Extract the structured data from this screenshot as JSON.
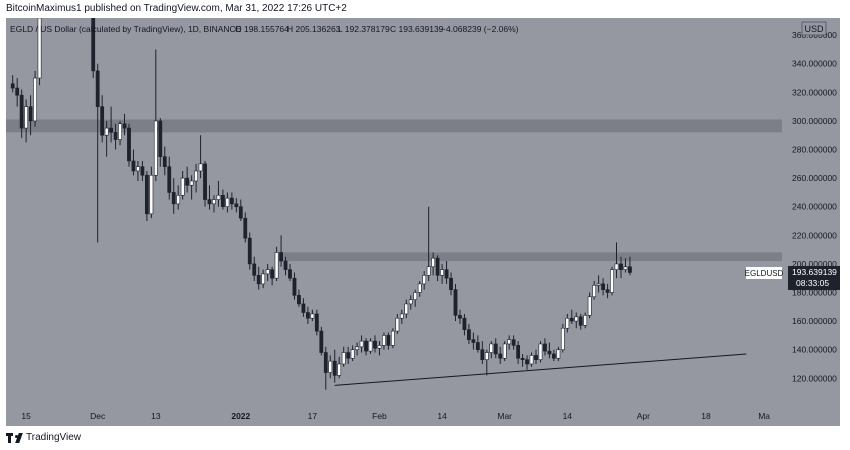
{
  "header": {
    "text": "BitcoinMaximus1 published on TradingView.com, Mar 31, 2022 17:26 UTC+2"
  },
  "footer": {
    "logo_text": "TradingView"
  },
  "colors": {
    "background": "#9598a1",
    "zone": "#7c7f87",
    "up": "#ffffff",
    "down": "#1e222d",
    "text": "#131722"
  },
  "chart_data": {
    "type": "candlestick",
    "symbol_line": {
      "title": "EGLD / US Dollar (calculated by TradingView), 1D, BINANCE",
      "open": "O 198.155764",
      "high": "H 205.136263",
      "low": "L 192.378179",
      "close": "C 193.639139",
      "change": "−4.068239 (−2.06%)"
    },
    "currency": "USD",
    "ylim": [
      102,
      372
    ],
    "y_ticks": [
      "360.000000",
      "340.000000",
      "320.000000",
      "300.000000",
      "280.000000",
      "260.000000",
      "240.000000",
      "220.000000",
      "200.000000",
      "180.000000",
      "160.000000",
      "140.000000",
      "120.000000"
    ],
    "x_ticks": [
      "15",
      "Dec",
      "13",
      "2022",
      "17",
      "Feb",
      "14",
      "Mar",
      "14",
      "Apr",
      "18",
      "Ma"
    ],
    "x_tick_days": [
      -1,
      15,
      28,
      47,
      63,
      78,
      92,
      106,
      120,
      137,
      151,
      164
    ],
    "last_price": {
      "label": "EGLDUSD",
      "price": "193.639139",
      "countdown": "08:33:05",
      "value": 193.64
    },
    "resistance_zones": [
      {
        "low": 292,
        "high": 301
      },
      {
        "low": 202,
        "high": 208
      }
    ],
    "support_line": {
      "from_day": 68,
      "from_value": 115,
      "to_day": 160,
      "to_value": 137
    },
    "candles": [
      {
        "day": -4,
        "o": 326,
        "h": 332,
        "l": 320,
        "c": 323
      },
      {
        "day": -3,
        "o": 323,
        "h": 330,
        "l": 310,
        "c": 318
      },
      {
        "day": -2,
        "o": 318,
        "h": 322,
        "l": 288,
        "c": 295
      },
      {
        "day": -1,
        "o": 295,
        "h": 315,
        "l": 285,
        "c": 310
      },
      {
        "day": 0,
        "o": 310,
        "h": 318,
        "l": 290,
        "c": 300
      },
      {
        "day": 1,
        "o": 300,
        "h": 335,
        "l": 296,
        "c": 330
      },
      {
        "day": 2,
        "o": 330,
        "h": 385,
        "l": 325,
        "c": 380
      },
      {
        "day": 14,
        "o": 385,
        "h": 390,
        "l": 330,
        "c": 335
      },
      {
        "day": 15,
        "o": 335,
        "h": 340,
        "l": 215,
        "c": 310
      },
      {
        "day": 16,
        "o": 310,
        "h": 318,
        "l": 285,
        "c": 290
      },
      {
        "day": 17,
        "o": 290,
        "h": 300,
        "l": 275,
        "c": 295
      },
      {
        "day": 18,
        "o": 295,
        "h": 310,
        "l": 285,
        "c": 292
      },
      {
        "day": 19,
        "o": 292,
        "h": 298,
        "l": 280,
        "c": 287
      },
      {
        "day": 20,
        "o": 287,
        "h": 300,
        "l": 283,
        "c": 298
      },
      {
        "day": 21,
        "o": 298,
        "h": 305,
        "l": 290,
        "c": 295
      },
      {
        "day": 22,
        "o": 295,
        "h": 298,
        "l": 268,
        "c": 272
      },
      {
        "day": 23,
        "o": 272,
        "h": 280,
        "l": 262,
        "c": 265
      },
      {
        "day": 24,
        "o": 265,
        "h": 272,
        "l": 258,
        "c": 268
      },
      {
        "day": 25,
        "o": 268,
        "h": 272,
        "l": 258,
        "c": 262
      },
      {
        "day": 26,
        "o": 262,
        "h": 265,
        "l": 230,
        "c": 235
      },
      {
        "day": 27,
        "o": 235,
        "h": 268,
        "l": 232,
        "c": 262
      },
      {
        "day": 28,
        "o": 262,
        "h": 350,
        "l": 258,
        "c": 300
      },
      {
        "day": 29,
        "o": 300,
        "h": 302,
        "l": 268,
        "c": 275
      },
      {
        "day": 30,
        "o": 275,
        "h": 282,
        "l": 262,
        "c": 268
      },
      {
        "day": 31,
        "o": 268,
        "h": 275,
        "l": 245,
        "c": 250
      },
      {
        "day": 32,
        "o": 250,
        "h": 260,
        "l": 235,
        "c": 242
      },
      {
        "day": 33,
        "o": 242,
        "h": 255,
        "l": 238,
        "c": 248
      },
      {
        "day": 34,
        "o": 248,
        "h": 265,
        "l": 245,
        "c": 260
      },
      {
        "day": 35,
        "o": 260,
        "h": 268,
        "l": 250,
        "c": 255
      },
      {
        "day": 36,
        "o": 255,
        "h": 262,
        "l": 245,
        "c": 258
      },
      {
        "day": 37,
        "o": 258,
        "h": 270,
        "l": 250,
        "c": 265
      },
      {
        "day": 38,
        "o": 265,
        "h": 290,
        "l": 260,
        "c": 270
      },
      {
        "day": 39,
        "o": 270,
        "h": 272,
        "l": 240,
        "c": 245
      },
      {
        "day": 40,
        "o": 245,
        "h": 255,
        "l": 238,
        "c": 242
      },
      {
        "day": 41,
        "o": 242,
        "h": 248,
        "l": 236,
        "c": 245
      },
      {
        "day": 42,
        "o": 245,
        "h": 258,
        "l": 240,
        "c": 248
      },
      {
        "day": 43,
        "o": 248,
        "h": 252,
        "l": 238,
        "c": 240
      },
      {
        "day": 44,
        "o": 240,
        "h": 250,
        "l": 236,
        "c": 246
      },
      {
        "day": 45,
        "o": 246,
        "h": 250,
        "l": 238,
        "c": 242
      },
      {
        "day": 46,
        "o": 242,
        "h": 246,
        "l": 236,
        "c": 240
      },
      {
        "day": 47,
        "o": 240,
        "h": 245,
        "l": 230,
        "c": 232
      },
      {
        "day": 48,
        "o": 232,
        "h": 236,
        "l": 215,
        "c": 218
      },
      {
        "day": 49,
        "o": 218,
        "h": 222,
        "l": 196,
        "c": 200
      },
      {
        "day": 50,
        "o": 200,
        "h": 205,
        "l": 188,
        "c": 192
      },
      {
        "day": 51,
        "o": 192,
        "h": 198,
        "l": 182,
        "c": 186
      },
      {
        "day": 52,
        "o": 186,
        "h": 196,
        "l": 183,
        "c": 193
      },
      {
        "day": 53,
        "o": 193,
        "h": 200,
        "l": 188,
        "c": 196
      },
      {
        "day": 54,
        "o": 196,
        "h": 198,
        "l": 185,
        "c": 190
      },
      {
        "day": 55,
        "o": 190,
        "h": 212,
        "l": 188,
        "c": 208
      },
      {
        "day": 56,
        "o": 208,
        "h": 220,
        "l": 198,
        "c": 202
      },
      {
        "day": 57,
        "o": 202,
        "h": 205,
        "l": 192,
        "c": 196
      },
      {
        "day": 58,
        "o": 196,
        "h": 200,
        "l": 188,
        "c": 190
      },
      {
        "day": 59,
        "o": 190,
        "h": 194,
        "l": 175,
        "c": 178
      },
      {
        "day": 60,
        "o": 178,
        "h": 182,
        "l": 170,
        "c": 172
      },
      {
        "day": 61,
        "o": 172,
        "h": 176,
        "l": 163,
        "c": 166
      },
      {
        "day": 62,
        "o": 166,
        "h": 170,
        "l": 158,
        "c": 162
      },
      {
        "day": 63,
        "o": 162,
        "h": 168,
        "l": 160,
        "c": 165
      },
      {
        "day": 64,
        "o": 165,
        "h": 168,
        "l": 150,
        "c": 153
      },
      {
        "day": 65,
        "o": 153,
        "h": 156,
        "l": 136,
        "c": 138
      },
      {
        "day": 66,
        "o": 138,
        "h": 142,
        "l": 112,
        "c": 124
      },
      {
        "day": 67,
        "o": 124,
        "h": 136,
        "l": 120,
        "c": 132
      },
      {
        "day": 68,
        "o": 132,
        "h": 140,
        "l": 117,
        "c": 122
      },
      {
        "day": 69,
        "o": 122,
        "h": 135,
        "l": 120,
        "c": 130
      },
      {
        "day": 70,
        "o": 130,
        "h": 142,
        "l": 128,
        "c": 138
      },
      {
        "day": 71,
        "o": 138,
        "h": 142,
        "l": 130,
        "c": 134
      },
      {
        "day": 72,
        "o": 134,
        "h": 143,
        "l": 132,
        "c": 140
      },
      {
        "day": 73,
        "o": 140,
        "h": 145,
        "l": 136,
        "c": 142
      },
      {
        "day": 74,
        "o": 142,
        "h": 150,
        "l": 138,
        "c": 146
      },
      {
        "day": 75,
        "o": 146,
        "h": 148,
        "l": 136,
        "c": 139
      },
      {
        "day": 76,
        "o": 139,
        "h": 148,
        "l": 137,
        "c": 146
      },
      {
        "day": 77,
        "o": 146,
        "h": 150,
        "l": 138,
        "c": 141
      },
      {
        "day": 78,
        "o": 141,
        "h": 146,
        "l": 136,
        "c": 143
      },
      {
        "day": 79,
        "o": 143,
        "h": 152,
        "l": 140,
        "c": 150
      },
      {
        "day": 80,
        "o": 150,
        "h": 152,
        "l": 140,
        "c": 143
      },
      {
        "day": 81,
        "o": 143,
        "h": 155,
        "l": 141,
        "c": 153
      },
      {
        "day": 82,
        "o": 153,
        "h": 165,
        "l": 151,
        "c": 162
      },
      {
        "day": 83,
        "o": 162,
        "h": 168,
        "l": 158,
        "c": 165
      },
      {
        "day": 84,
        "o": 165,
        "h": 175,
        "l": 162,
        "c": 172
      },
      {
        "day": 85,
        "o": 172,
        "h": 178,
        "l": 168,
        "c": 175
      },
      {
        "day": 86,
        "o": 175,
        "h": 182,
        "l": 170,
        "c": 180
      },
      {
        "day": 87,
        "o": 180,
        "h": 188,
        "l": 177,
        "c": 186
      },
      {
        "day": 88,
        "o": 186,
        "h": 195,
        "l": 182,
        "c": 192
      },
      {
        "day": 89,
        "o": 192,
        "h": 240,
        "l": 188,
        "c": 198
      },
      {
        "day": 90,
        "o": 198,
        "h": 208,
        "l": 192,
        "c": 204
      },
      {
        "day": 91,
        "o": 204,
        "h": 206,
        "l": 188,
        "c": 192
      },
      {
        "day": 92,
        "o": 192,
        "h": 200,
        "l": 186,
        "c": 196
      },
      {
        "day": 93,
        "o": 196,
        "h": 202,
        "l": 186,
        "c": 190
      },
      {
        "day": 94,
        "o": 190,
        "h": 194,
        "l": 178,
        "c": 182
      },
      {
        "day": 95,
        "o": 182,
        "h": 186,
        "l": 160,
        "c": 164
      },
      {
        "day": 96,
        "o": 164,
        "h": 168,
        "l": 158,
        "c": 162
      },
      {
        "day": 97,
        "o": 162,
        "h": 165,
        "l": 150,
        "c": 154
      },
      {
        "day": 98,
        "o": 154,
        "h": 158,
        "l": 144,
        "c": 147
      },
      {
        "day": 99,
        "o": 147,
        "h": 152,
        "l": 140,
        "c": 145
      },
      {
        "day": 100,
        "o": 145,
        "h": 150,
        "l": 138,
        "c": 140
      },
      {
        "day": 101,
        "o": 140,
        "h": 146,
        "l": 130,
        "c": 133
      },
      {
        "day": 102,
        "o": 133,
        "h": 140,
        "l": 122,
        "c": 138
      },
      {
        "day": 103,
        "o": 138,
        "h": 146,
        "l": 134,
        "c": 144
      },
      {
        "day": 104,
        "o": 144,
        "h": 148,
        "l": 134,
        "c": 137
      },
      {
        "day": 105,
        "o": 137,
        "h": 142,
        "l": 130,
        "c": 134
      },
      {
        "day": 106,
        "o": 134,
        "h": 146,
        "l": 132,
        "c": 144
      },
      {
        "day": 107,
        "o": 144,
        "h": 150,
        "l": 140,
        "c": 147
      },
      {
        "day": 108,
        "o": 147,
        "h": 150,
        "l": 140,
        "c": 143
      },
      {
        "day": 109,
        "o": 143,
        "h": 146,
        "l": 130,
        "c": 134
      },
      {
        "day": 110,
        "o": 134,
        "h": 137,
        "l": 128,
        "c": 133
      },
      {
        "day": 111,
        "o": 133,
        "h": 136,
        "l": 126,
        "c": 130
      },
      {
        "day": 112,
        "o": 130,
        "h": 138,
        "l": 128,
        "c": 136
      },
      {
        "day": 113,
        "o": 136,
        "h": 140,
        "l": 130,
        "c": 133
      },
      {
        "day": 114,
        "o": 133,
        "h": 146,
        "l": 131,
        "c": 144
      },
      {
        "day": 115,
        "o": 144,
        "h": 148,
        "l": 136,
        "c": 139
      },
      {
        "day": 116,
        "o": 139,
        "h": 145,
        "l": 134,
        "c": 137
      },
      {
        "day": 117,
        "o": 137,
        "h": 140,
        "l": 132,
        "c": 134
      },
      {
        "day": 118,
        "o": 134,
        "h": 142,
        "l": 132,
        "c": 140
      },
      {
        "day": 119,
        "o": 140,
        "h": 158,
        "l": 138,
        "c": 155
      },
      {
        "day": 120,
        "o": 155,
        "h": 165,
        "l": 152,
        "c": 162
      },
      {
        "day": 121,
        "o": 162,
        "h": 168,
        "l": 158,
        "c": 160
      },
      {
        "day": 122,
        "o": 160,
        "h": 166,
        "l": 155,
        "c": 163
      },
      {
        "day": 123,
        "o": 163,
        "h": 165,
        "l": 154,
        "c": 157
      },
      {
        "day": 124,
        "o": 157,
        "h": 166,
        "l": 155,
        "c": 164
      },
      {
        "day": 125,
        "o": 164,
        "h": 180,
        "l": 162,
        "c": 177
      },
      {
        "day": 126,
        "o": 177,
        "h": 188,
        "l": 175,
        "c": 185
      },
      {
        "day": 127,
        "o": 185,
        "h": 192,
        "l": 180,
        "c": 186
      },
      {
        "day": 128,
        "o": 186,
        "h": 190,
        "l": 178,
        "c": 182
      },
      {
        "day": 129,
        "o": 182,
        "h": 186,
        "l": 176,
        "c": 180
      },
      {
        "day": 130,
        "o": 180,
        "h": 198,
        "l": 178,
        "c": 196
      },
      {
        "day": 131,
        "o": 196,
        "h": 215,
        "l": 190,
        "c": 200
      },
      {
        "day": 132,
        "o": 200,
        "h": 205,
        "l": 190,
        "c": 196
      },
      {
        "day": 133,
        "o": 196,
        "h": 204,
        "l": 194,
        "c": 198
      },
      {
        "day": 134,
        "o": 198,
        "h": 205,
        "l": 192,
        "c": 194
      }
    ]
  }
}
